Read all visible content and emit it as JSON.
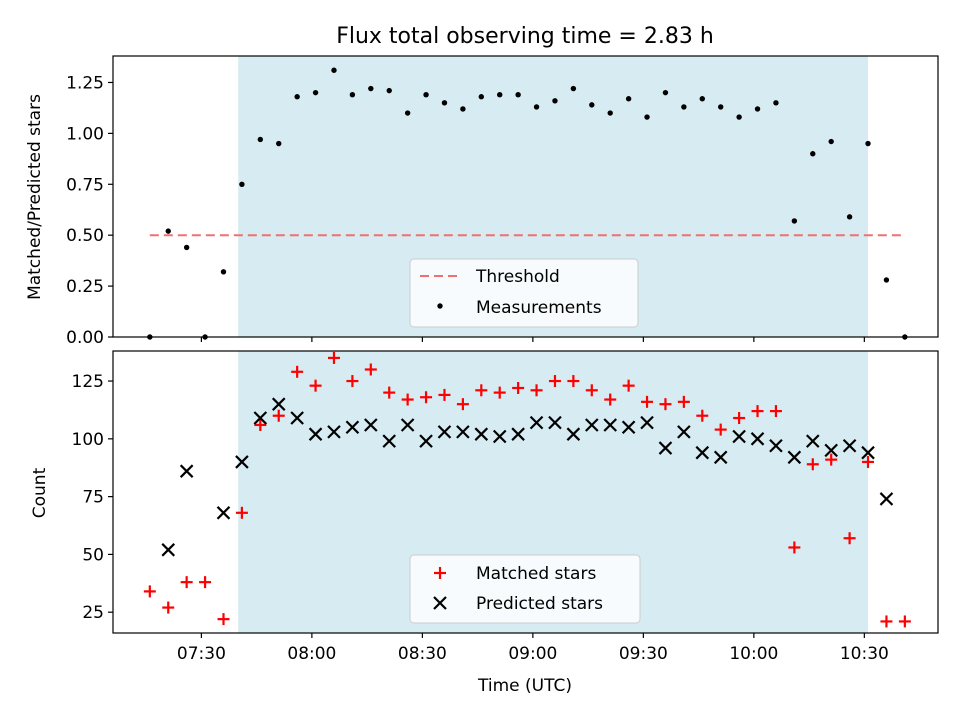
{
  "title": "Flux total observing time = 2.83 h",
  "chart_data": [
    {
      "type": "scatter",
      "panel": "top",
      "ylabel": "Matched/Predicted stars",
      "xlabel": "",
      "ylim": [
        0,
        1.38
      ],
      "yticks": [
        "0.00",
        "0.25",
        "0.50",
        "0.75",
        "1.00",
        "1.25"
      ],
      "grid": false,
      "legend_position": "bottom-center",
      "observing_window": [
        "07:40",
        "10:31"
      ],
      "threshold": {
        "name": "Threshold",
        "value": 0.5,
        "x_range": [
          "07:16",
          "10:40"
        ],
        "color": "#f07070"
      },
      "series": [
        {
          "name": "Measurements",
          "color": "#000000",
          "marker": "dot",
          "x": [
            "07:16",
            "07:21",
            "07:26",
            "07:31",
            "07:36",
            "07:41",
            "07:46",
            "07:51",
            "07:56",
            "08:01",
            "08:06",
            "08:11",
            "08:16",
            "08:21",
            "08:26",
            "08:31",
            "08:36",
            "08:41",
            "08:46",
            "08:51",
            "08:56",
            "09:01",
            "09:06",
            "09:11",
            "09:16",
            "09:21",
            "09:26",
            "09:31",
            "09:36",
            "09:41",
            "09:46",
            "09:51",
            "09:56",
            "10:01",
            "10:06",
            "10:11",
            "10:16",
            "10:21",
            "10:26",
            "10:31",
            "10:36",
            "10:41"
          ],
          "values": [
            0.0,
            0.52,
            0.44,
            0.0,
            0.32,
            0.75,
            0.97,
            0.95,
            1.18,
            1.2,
            1.31,
            1.19,
            1.22,
            1.21,
            1.1,
            1.19,
            1.15,
            1.12,
            1.18,
            1.19,
            1.19,
            1.13,
            1.16,
            1.22,
            1.14,
            1.1,
            1.17,
            1.08,
            1.2,
            1.13,
            1.17,
            1.13,
            1.08,
            1.12,
            1.15,
            0.57,
            0.9,
            0.96,
            0.59,
            0.95,
            0.28,
            0.0
          ]
        }
      ]
    },
    {
      "type": "scatter",
      "panel": "bottom",
      "ylabel": "Count",
      "xlabel": "Time (UTC)",
      "ylim": [
        16,
        138
      ],
      "yticks": [
        "25",
        "50",
        "75",
        "100",
        "125"
      ],
      "xticks": [
        "07:30",
        "08:00",
        "08:30",
        "09:00",
        "09:30",
        "10:00",
        "10:30"
      ],
      "xlim": [
        "07:06",
        "10:50"
      ],
      "grid": false,
      "legend_position": "bottom-center",
      "observing_window": [
        "07:40",
        "10:31"
      ],
      "series": [
        {
          "name": "Matched stars",
          "color": "#ff0000",
          "marker": "plus",
          "x": [
            "07:16",
            "07:21",
            "07:26",
            "07:31",
            "07:36",
            "07:41",
            "07:46",
            "07:51",
            "07:56",
            "08:01",
            "08:06",
            "08:11",
            "08:16",
            "08:21",
            "08:26",
            "08:31",
            "08:36",
            "08:41",
            "08:46",
            "08:51",
            "08:56",
            "09:01",
            "09:06",
            "09:11",
            "09:16",
            "09:21",
            "09:26",
            "09:31",
            "09:36",
            "09:41",
            "09:46",
            "09:51",
            "09:56",
            "10:01",
            "10:06",
            "10:11",
            "10:16",
            "10:21",
            "10:26",
            "10:31",
            "10:36",
            "10:41"
          ],
          "values": [
            34,
            27,
            38,
            38,
            22,
            68,
            106,
            110,
            129,
            123,
            135,
            125,
            130,
            120,
            117,
            118,
            119,
            115,
            121,
            120,
            122,
            121,
            125,
            125,
            121,
            117,
            123,
            116,
            115,
            116,
            110,
            104,
            109,
            112,
            112,
            53,
            89,
            91,
            57,
            90,
            21,
            21
          ]
        },
        {
          "name": "Predicted stars",
          "color": "#000000",
          "marker": "x",
          "x": [
            "07:21",
            "07:26",
            "07:36",
            "07:41",
            "07:46",
            "07:51",
            "07:56",
            "08:01",
            "08:06",
            "08:11",
            "08:16",
            "08:21",
            "08:26",
            "08:31",
            "08:36",
            "08:41",
            "08:46",
            "08:51",
            "08:56",
            "09:01",
            "09:06",
            "09:11",
            "09:16",
            "09:21",
            "09:26",
            "09:31",
            "09:36",
            "09:41",
            "09:46",
            "09:51",
            "09:56",
            "10:01",
            "10:06",
            "10:11",
            "10:16",
            "10:21",
            "10:26",
            "10:31",
            "10:36"
          ],
          "values": [
            52,
            86,
            68,
            90,
            109,
            115,
            109,
            102,
            103,
            105,
            106,
            99,
            106,
            99,
            103,
            103,
            102,
            101,
            102,
            107,
            107,
            102,
            106,
            106,
            105,
            107,
            96,
            103,
            94,
            92,
            101,
            100,
            97,
            92,
            99,
            95,
            97,
            94,
            74
          ]
        }
      ]
    }
  ]
}
